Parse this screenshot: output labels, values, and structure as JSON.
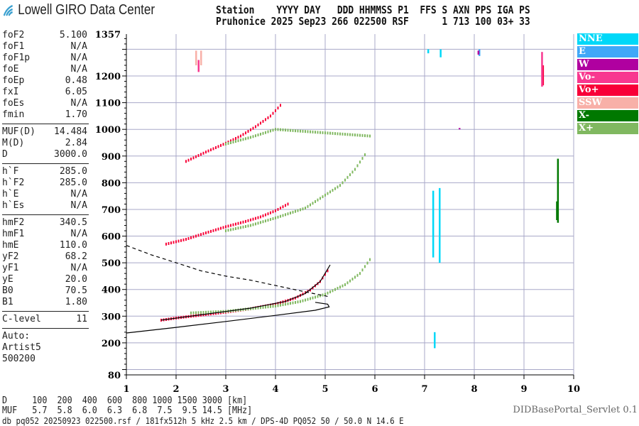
{
  "logo": {
    "text": "Lowell GIRO Data Center"
  },
  "header": {
    "line1": "Station    YYYY DAY   DDD HHMMSS P1  FFS S AXN PPS IGA PS",
    "line2": "Pruhonice 2025 Sep23 266 022500 RSF      1 713 100 03+ 33"
  },
  "params": [
    [
      {
        "k": "foF2",
        "v": "5.100"
      },
      {
        "k": "foF1",
        "v": "N/A"
      },
      {
        "k": "foF1p",
        "v": "N/A"
      },
      {
        "k": "foE",
        "v": "N/A"
      },
      {
        "k": "foEp",
        "v": "0.48"
      },
      {
        "k": "fxI",
        "v": "6.05"
      },
      {
        "k": "foEs",
        "v": "N/A"
      },
      {
        "k": "fmin",
        "v": "1.70"
      }
    ],
    [
      {
        "k": "MUF(D)",
        "v": "14.484"
      },
      {
        "k": "M(D)",
        "v": "2.84"
      },
      {
        "k": "D",
        "v": "3000.0"
      }
    ],
    [
      {
        "k": "h`F",
        "v": "285.0"
      },
      {
        "k": "h`F2",
        "v": "285.0"
      },
      {
        "k": "h`E",
        "v": "N/A"
      },
      {
        "k": "h`Es",
        "v": "N/A"
      }
    ],
    [
      {
        "k": "hmF2",
        "v": "340.5"
      },
      {
        "k": "hmF1",
        "v": "N/A"
      },
      {
        "k": "hmE",
        "v": "110.0"
      },
      {
        "k": "yF2",
        "v": "68.2"
      },
      {
        "k": "yF1",
        "v": "N/A"
      },
      {
        "k": "yE",
        "v": "20.0"
      },
      {
        "k": "B0",
        "v": "70.5"
      },
      {
        "k": "B1",
        "v": "1.80"
      }
    ],
    [
      {
        "k": "C-level",
        "v": "11"
      }
    ]
  ],
  "auto": [
    "Auto:",
    "Artist5",
    "500200"
  ],
  "legend": [
    {
      "label": "NNE",
      "color": "#00d8f8"
    },
    {
      "label": "E",
      "color": "#40a8f8"
    },
    {
      "label": "W",
      "color": "#b000a0"
    },
    {
      "label": "Vo-",
      "color": "#f83890"
    },
    {
      "label": "Vo+",
      "color": "#f80038"
    },
    {
      "label": "SSW",
      "color": "#f8b0a8"
    },
    {
      "label": "X-",
      "color": "#007800"
    },
    {
      "label": "X+",
      "color": "#80b860"
    }
  ],
  "footer": {
    "d_line": "D     100  200  400  600  800 1000 1500 3000 [km]",
    "muf_line": "MUF   5.7  5.8  6.0  6.3  6.8  7.5  9.5 14.5 [MHz]",
    "db_line": "db pq052 20250923 022500.rsf / 181fx512h 5 kHz 2.5 km / DPS-4D PQ052 50 / 50.0 N 14.6 E",
    "servlet": "DIDBasePortal_Servlet 0.1"
  },
  "chart_data": {
    "type": "scatter",
    "xlabel": "",
    "ylabel": "",
    "xlim": [
      1,
      10
    ],
    "ylim": [
      80,
      1357
    ],
    "xticks": [
      "1",
      "2",
      "3",
      "4",
      "5",
      "6",
      "7",
      "8",
      "9",
      "10"
    ],
    "yticks": [
      "1357",
      "1200",
      "1100",
      "1000",
      "900",
      "800",
      "700",
      "600",
      "500",
      "400",
      "300",
      "200",
      "80"
    ],
    "grid": true,
    "legend_position": "right",
    "series": [
      {
        "name": "Vo+",
        "color": "#f80038",
        "traces": [
          [
            [
              1.7,
              285
            ],
            [
              2.0,
              293
            ],
            [
              2.5,
              304
            ],
            [
              3.0,
              315
            ],
            [
              3.5,
              328
            ],
            [
              4.0,
              345
            ],
            [
              4.4,
              368
            ],
            [
              4.7,
              398
            ],
            [
              4.9,
              430
            ],
            [
              5.05,
              470
            ]
          ],
          [
            [
              1.8,
              570
            ],
            [
              2.2,
              588
            ],
            [
              2.6,
              612
            ],
            [
              3.0,
              635
            ],
            [
              3.4,
              655
            ],
            [
              3.7,
              672
            ],
            [
              4.0,
              695
            ],
            [
              4.25,
              720
            ]
          ],
          [
            [
              2.2,
              880
            ],
            [
              2.6,
              915
            ],
            [
              3.0,
              948
            ],
            [
              3.3,
              975
            ],
            [
              3.6,
              1010
            ],
            [
              3.9,
              1050
            ],
            [
              4.1,
              1090
            ]
          ],
          [
            [
              9.38,
              1165
            ],
            [
              9.38,
              1240
            ]
          ]
        ]
      },
      {
        "name": "X+",
        "color": "#80b860",
        "traces": [
          [
            [
              2.3,
              312
            ],
            [
              3.0,
              318
            ],
            [
              3.5,
              328
            ],
            [
              4.0,
              338
            ],
            [
              4.5,
              355
            ],
            [
              5.0,
              382
            ],
            [
              5.4,
              418
            ],
            [
              5.7,
              460
            ],
            [
              5.9,
              512
            ]
          ],
          [
            [
              3.0,
              620
            ],
            [
              3.5,
              640
            ],
            [
              4.0,
              668
            ],
            [
              4.6,
              705
            ],
            [
              5.3,
              790
            ],
            [
              5.6,
              850
            ],
            [
              5.8,
              905
            ]
          ],
          [
            [
              3.0,
              945
            ],
            [
              3.5,
              970
            ],
            [
              4.0,
              1000
            ],
            [
              5.9,
              975
            ]
          ]
        ]
      },
      {
        "name": "X-",
        "color": "#007800",
        "traces": [
          [
            [
              9.68,
              650
            ],
            [
              9.68,
              890
            ]
          ],
          [
            [
              9.66,
              660
            ],
            [
              9.66,
              730
            ]
          ]
        ]
      },
      {
        "name": "NNE",
        "color": "#00d8f8",
        "traces": [
          [
            [
              7.3,
              500
            ],
            [
              7.3,
              780
            ]
          ],
          [
            [
              7.17,
              520
            ],
            [
              7.17,
              770
            ]
          ],
          [
            [
              7.2,
              180
            ],
            [
              7.2,
              240
            ]
          ],
          [
            [
              7.32,
              1270
            ],
            [
              7.32,
              1300
            ]
          ],
          [
            [
              7.07,
              1285
            ],
            [
              7.07,
              1300
            ]
          ]
        ]
      },
      {
        "name": "E",
        "color": "#40a8f8",
        "traces": [
          [
            [
              8.1,
              1275
            ],
            [
              8.1,
              1300
            ]
          ]
        ]
      },
      {
        "name": "Vo-",
        "color": "#f83890",
        "traces": [
          [
            [
              9.36,
              1160
            ],
            [
              9.36,
              1290
            ]
          ],
          [
            [
              2.45,
              1215
            ],
            [
              2.45,
              1260
            ]
          ]
        ]
      },
      {
        "name": "SSW",
        "color": "#f8b0a8",
        "traces": [
          [
            [
              2.4,
              1240
            ],
            [
              2.4,
              1295
            ]
          ],
          [
            [
              2.5,
              1240
            ],
            [
              2.5,
              1295
            ]
          ]
        ]
      },
      {
        "name": "W",
        "color": "#b000a0",
        "traces": [
          [
            [
              8.08,
              1280
            ],
            [
              8.08,
              1295
            ]
          ],
          [
            [
              7.7,
              1000
            ],
            [
              7.7,
              1005
            ]
          ]
        ]
      }
    ],
    "profile": {
      "solid_lower": [
        [
          1.0,
          237
        ],
        [
          2.0,
          258
        ],
        [
          3.0,
          280
        ],
        [
          4.0,
          303
        ],
        [
          4.8,
          322
        ],
        [
          5.08,
          335
        ],
        [
          5.05,
          345
        ],
        [
          4.8,
          352
        ]
      ],
      "solid_upper": [
        [
          1.7,
          285
        ],
        [
          2.5,
          305
        ],
        [
          3.5,
          330
        ],
        [
          4.2,
          355
        ],
        [
          4.6,
          385
        ],
        [
          4.9,
          430
        ],
        [
          5.1,
          492
        ]
      ],
      "dashed": [
        [
          1.0,
          565
        ],
        [
          1.5,
          530
        ],
        [
          2.0,
          500
        ],
        [
          2.5,
          470
        ],
        [
          3.0,
          450
        ],
        [
          3.5,
          435
        ],
        [
          4.0,
          415
        ],
        [
          4.5,
          395
        ],
        [
          5.1,
          372
        ]
      ]
    }
  }
}
